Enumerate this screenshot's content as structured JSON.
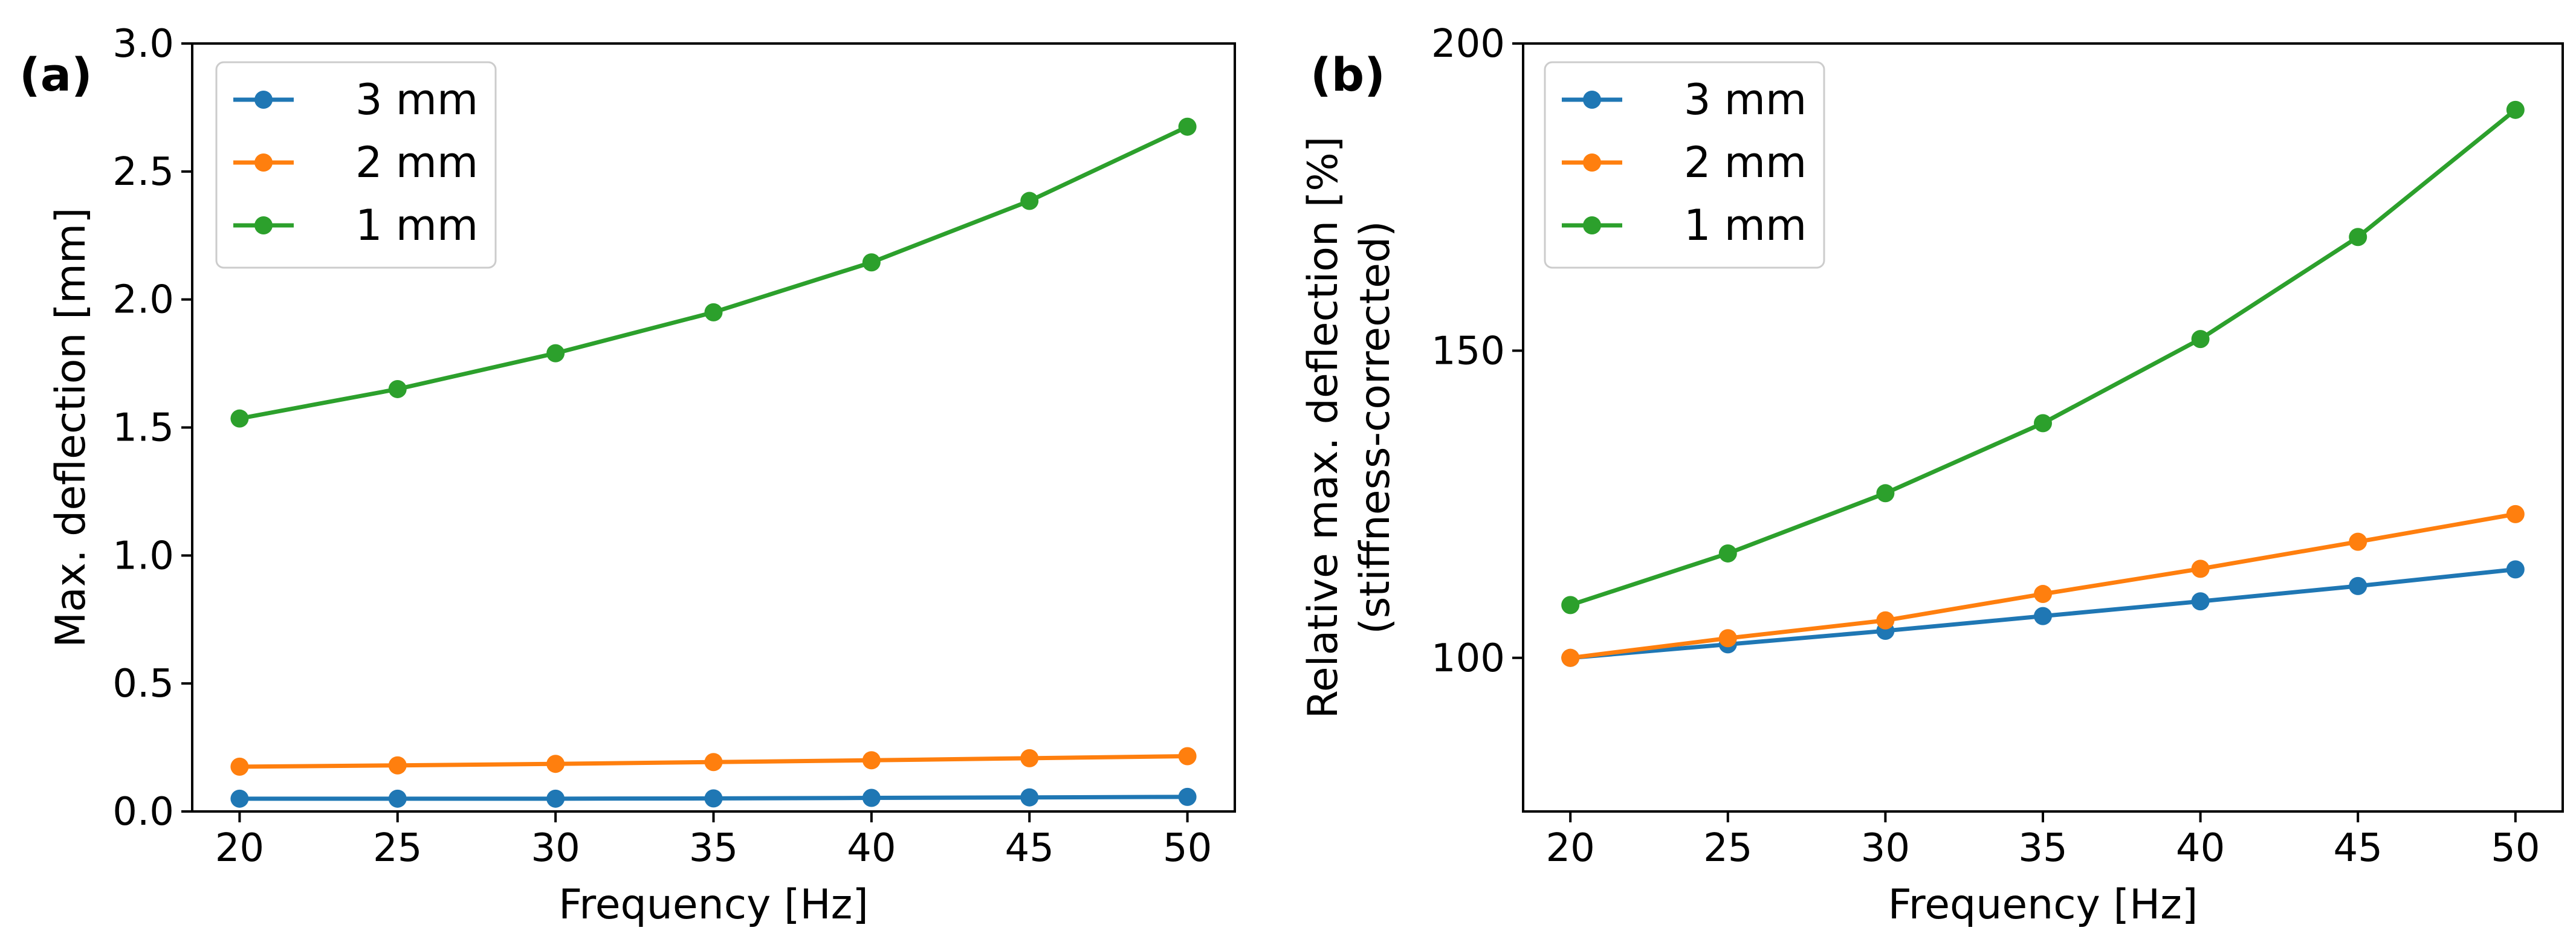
{
  "chart_data": [
    {
      "type": "line",
      "panel_label": "(a)",
      "title": "",
      "xlabel": "Frequency [Hz]",
      "ylabel": "Max. deflection [mm]",
      "ylabel2": "",
      "x": [
        20,
        25,
        30,
        35,
        40,
        45,
        50
      ],
      "xlim": [
        18.5,
        51.5
      ],
      "ylim": [
        0,
        3.0
      ],
      "xticks": [
        20,
        25,
        30,
        35,
        40,
        45,
        50
      ],
      "yticks": [
        0.0,
        0.5,
        1.0,
        1.5,
        2.0,
        2.5,
        3.0
      ],
      "ytick_labels": [
        "0.0",
        "0.5",
        "1.0",
        "1.5",
        "2.0",
        "2.5",
        "3.0"
      ],
      "legend_position": "top-left",
      "grid": false,
      "series": [
        {
          "name": "3 mm",
          "color": "#1f77b4",
          "values": [
            0.05,
            0.05,
            0.05,
            0.051,
            0.053,
            0.055,
            0.057
          ]
        },
        {
          "name": "2 mm",
          "color": "#ff7f0e",
          "values": [
            0.175,
            0.18,
            0.186,
            0.193,
            0.2,
            0.208,
            0.216
          ]
        },
        {
          "name": "1 mm",
          "color": "#2ca02c",
          "values": [
            1.535,
            1.65,
            1.79,
            1.95,
            2.145,
            2.385,
            2.675
          ]
        }
      ]
    },
    {
      "type": "line",
      "panel_label": "(b)",
      "title": "",
      "xlabel": "Frequency [Hz]",
      "ylabel": "Relative max. deflection [%]",
      "ylabel2": "(stiffness-corrected)",
      "x": [
        20,
        25,
        30,
        35,
        40,
        45,
        50
      ],
      "xlim": [
        18.5,
        51.5
      ],
      "ylim": [
        75,
        200
      ],
      "xticks": [
        20,
        25,
        30,
        35,
        40,
        45,
        50
      ],
      "yticks": [
        100,
        150,
        200
      ],
      "ytick_labels": [
        "100",
        "150",
        "200"
      ],
      "legend_position": "top-left",
      "grid": false,
      "series": [
        {
          "name": "3 mm",
          "color": "#1f77b4",
          "values": [
            100,
            102.2,
            104.4,
            106.8,
            109.2,
            111.7,
            114.4
          ]
        },
        {
          "name": "2 mm",
          "color": "#ff7f0e",
          "values": [
            100,
            103.2,
            106.1,
            110.4,
            114.5,
            118.9,
            123.4
          ]
        },
        {
          "name": "1 mm",
          "color": "#2ca02c",
          "values": [
            108.6,
            117,
            126.8,
            138.2,
            151.9,
            168.5,
            189.2
          ]
        }
      ]
    }
  ]
}
